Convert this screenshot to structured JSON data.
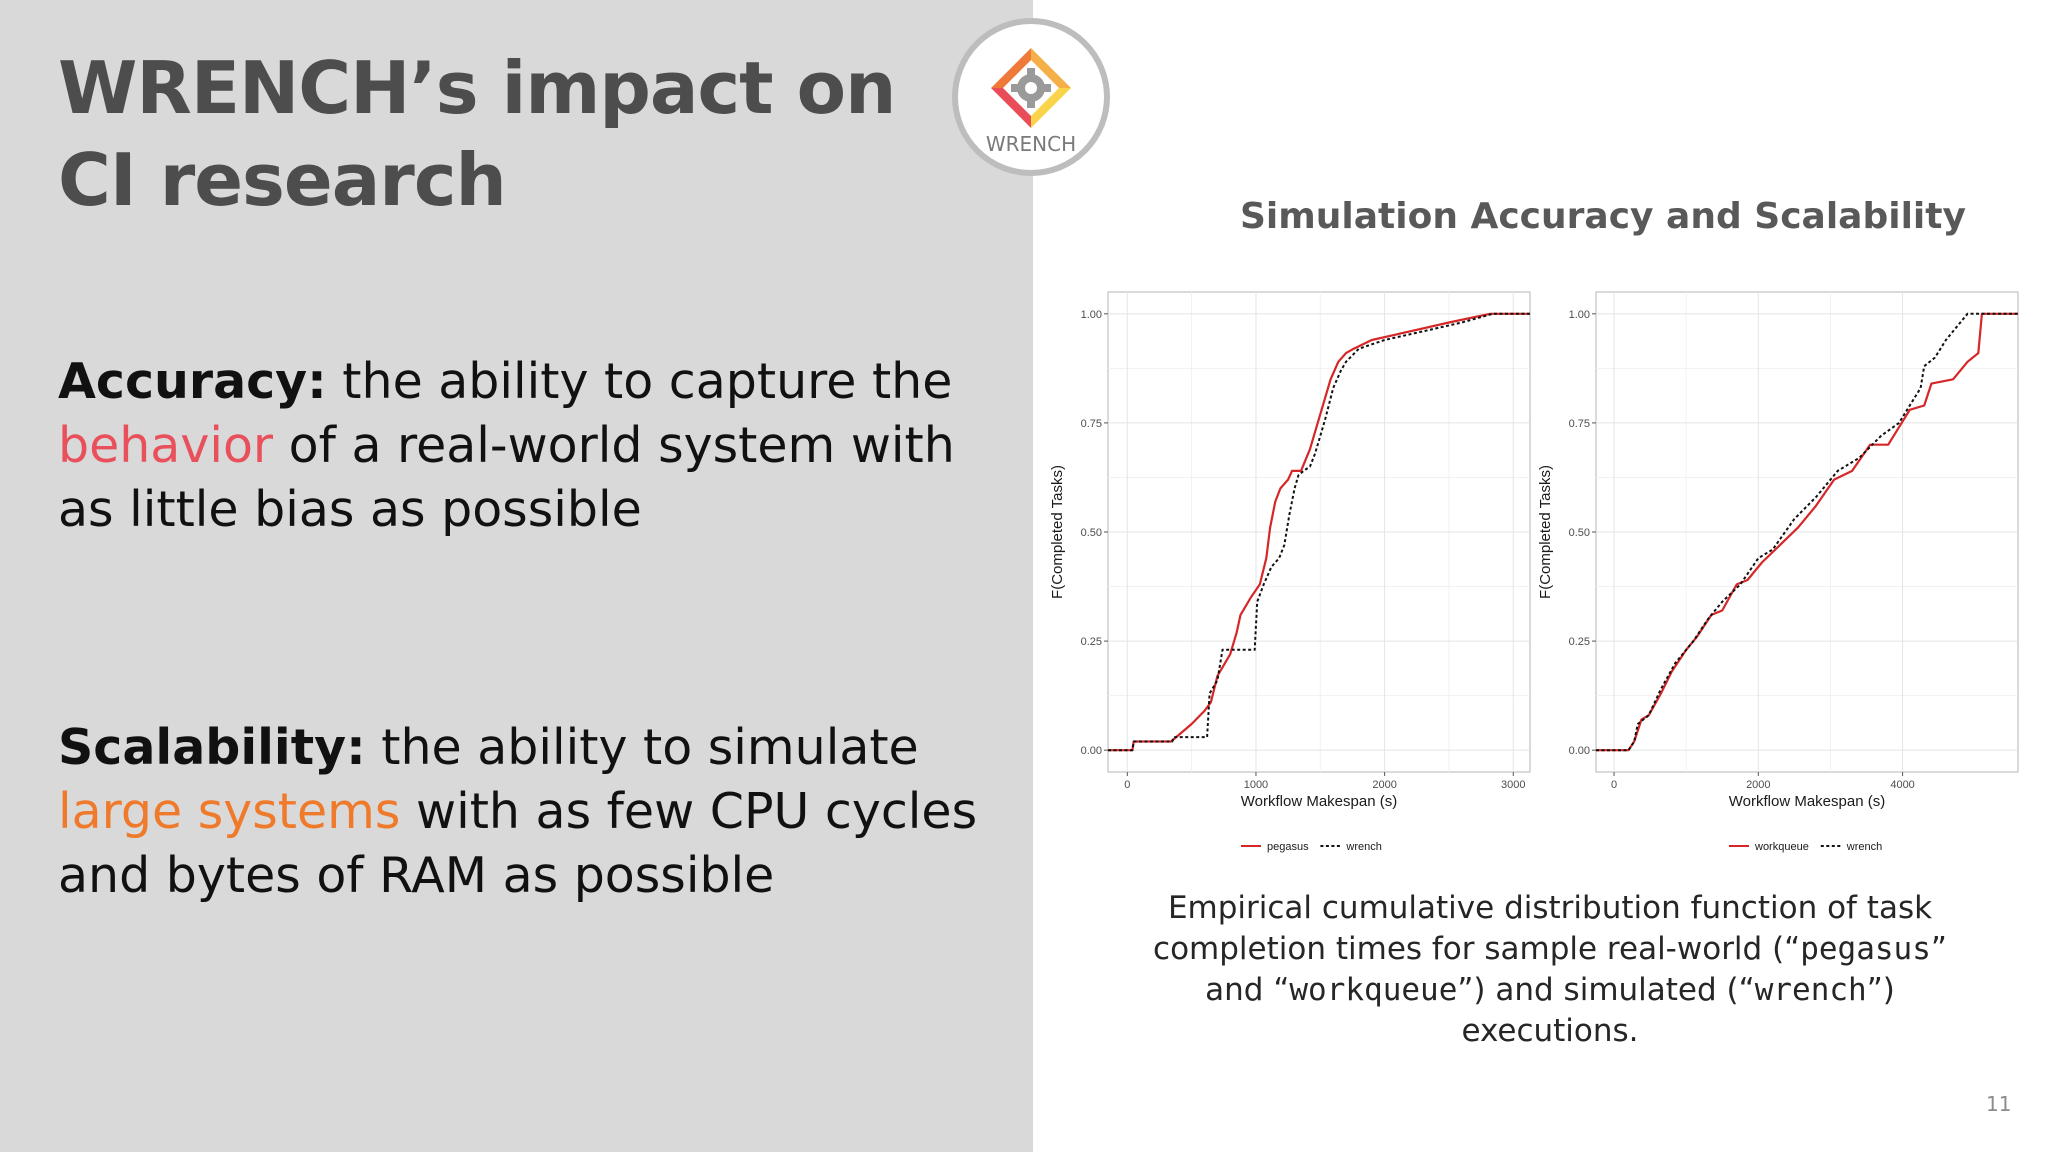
{
  "slide": {
    "title_line1": "WRENCH’s impact on",
    "title_line2": "CI research",
    "page_number": "11"
  },
  "logo": {
    "text": "WRENCH",
    "icon": "gear-icon"
  },
  "accuracy": {
    "term": "Accuracy:",
    "text_a": " the ability to capture the ",
    "highlight": "behavior",
    "text_b": " of a real-world system with as little bias as possible",
    "highlight_color": "#e8505b"
  },
  "scalability": {
    "term": "Scalability:",
    "text_a": " the ability to simulate ",
    "highlight": "large systems",
    "text_b": " with as few CPU cycles and bytes of RAM as possible",
    "highlight_color": "#ef7a2b"
  },
  "chart_section_title": "Simulation Accuracy and Scalability",
  "caption": {
    "part1": "Empirical cumulative distribution function of task completion times for sample real-world (“",
    "code1": "pegasus",
    "part2": "” and “",
    "code2": "workqueue",
    "part3": "”) and simulated (“",
    "code3": "wrench",
    "part4": "”) executions."
  },
  "chart_data": [
    {
      "type": "line",
      "xlabel": "Workflow Makespan (s)",
      "ylabel": "F(Completed Tasks)",
      "xlim": [
        -150,
        3130
      ],
      "ylim": [
        -0.05,
        1.05
      ],
      "xticks": [
        0,
        1000,
        2000,
        3000
      ],
      "xtick_labels": [
        "0",
        "1000",
        "2000",
        "3000"
      ],
      "yticks": [
        0,
        0.25,
        0.5,
        0.75,
        1.0
      ],
      "ytick_labels": [
        "0.00",
        "0.25",
        "0.50",
        "0.75",
        "1.00"
      ],
      "grid": true,
      "legend_position": "bottom",
      "series": [
        {
          "name": "pegasus",
          "color": "#d62728",
          "dash": "solid",
          "points": [
            [
              -150,
              0
            ],
            [
              40,
              0
            ],
            [
              50,
              0.02
            ],
            [
              340,
              0.02
            ],
            [
              380,
              0.03
            ],
            [
              500,
              0.06
            ],
            [
              600,
              0.09
            ],
            [
              650,
              0.11
            ],
            [
              700,
              0.17
            ],
            [
              760,
              0.2
            ],
            [
              800,
              0.22
            ],
            [
              850,
              0.27
            ],
            [
              880,
              0.31
            ],
            [
              920,
              0.33
            ],
            [
              960,
              0.35
            ],
            [
              1030,
              0.38
            ],
            [
              1080,
              0.44
            ],
            [
              1110,
              0.51
            ],
            [
              1150,
              0.57
            ],
            [
              1190,
              0.6
            ],
            [
              1250,
              0.62
            ],
            [
              1280,
              0.64
            ],
            [
              1350,
              0.64
            ],
            [
              1420,
              0.69
            ],
            [
              1500,
              0.77
            ],
            [
              1580,
              0.85
            ],
            [
              1640,
              0.89
            ],
            [
              1700,
              0.91
            ],
            [
              1760,
              0.92
            ],
            [
              1900,
              0.94
            ],
            [
              2200,
              0.96
            ],
            [
              2500,
              0.98
            ],
            [
              2820,
              1.0
            ],
            [
              3130,
              1.0
            ]
          ]
        },
        {
          "name": "wrench",
          "color": "#111111",
          "dash": "dotted",
          "points": [
            [
              -150,
              0
            ],
            [
              40,
              0
            ],
            [
              50,
              0.02
            ],
            [
              350,
              0.02
            ],
            [
              360,
              0.03
            ],
            [
              620,
              0.03
            ],
            [
              640,
              0.13
            ],
            [
              700,
              0.16
            ],
            [
              740,
              0.23
            ],
            [
              990,
              0.23
            ],
            [
              1010,
              0.34
            ],
            [
              1060,
              0.38
            ],
            [
              1120,
              0.42
            ],
            [
              1180,
              0.44
            ],
            [
              1220,
              0.47
            ],
            [
              1260,
              0.54
            ],
            [
              1300,
              0.6
            ],
            [
              1330,
              0.63
            ],
            [
              1370,
              0.64
            ],
            [
              1420,
              0.65
            ],
            [
              1460,
              0.68
            ],
            [
              1540,
              0.76
            ],
            [
              1600,
              0.83
            ],
            [
              1660,
              0.87
            ],
            [
              1700,
              0.89
            ],
            [
              1800,
              0.92
            ],
            [
              2000,
              0.94
            ],
            [
              2300,
              0.96
            ],
            [
              2600,
              0.98
            ],
            [
              2840,
              1.0
            ],
            [
              3130,
              1.0
            ]
          ]
        }
      ]
    },
    {
      "type": "line",
      "xlabel": "Workflow Makespan (s)",
      "ylabel": "F(Completed Tasks)",
      "xlim": [
        -250,
        5600
      ],
      "ylim": [
        -0.05,
        1.05
      ],
      "xticks": [
        0,
        2000,
        4000
      ],
      "xtick_labels": [
        "0",
        "2000",
        "4000"
      ],
      "yticks": [
        0,
        0.25,
        0.5,
        0.75,
        1.0
      ],
      "ytick_labels": [
        "0.00",
        "0.25",
        "0.50",
        "0.75",
        "1.00"
      ],
      "grid": true,
      "legend_position": "bottom",
      "series": [
        {
          "name": "workqueue",
          "color": "#d62728",
          "dash": "solid",
          "points": [
            [
              -250,
              0
            ],
            [
              200,
              0
            ],
            [
              280,
              0.02
            ],
            [
              380,
              0.07
            ],
            [
              480,
              0.08
            ],
            [
              650,
              0.13
            ],
            [
              800,
              0.18
            ],
            [
              1000,
              0.23
            ],
            [
              1150,
              0.26
            ],
            [
              1350,
              0.31
            ],
            [
              1500,
              0.32
            ],
            [
              1700,
              0.38
            ],
            [
              1850,
              0.39
            ],
            [
              2050,
              0.43
            ],
            [
              2300,
              0.47
            ],
            [
              2550,
              0.51
            ],
            [
              2800,
              0.56
            ],
            [
              3050,
              0.62
            ],
            [
              3300,
              0.64
            ],
            [
              3550,
              0.7
            ],
            [
              3800,
              0.7
            ],
            [
              4100,
              0.78
            ],
            [
              4300,
              0.79
            ],
            [
              4400,
              0.84
            ],
            [
              4700,
              0.85
            ],
            [
              4900,
              0.89
            ],
            [
              5050,
              0.91
            ],
            [
              5100,
              1.0
            ],
            [
              5600,
              1.0
            ]
          ]
        },
        {
          "name": "wrench",
          "color": "#111111",
          "dash": "dotted",
          "points": [
            [
              -250,
              0
            ],
            [
              200,
              0
            ],
            [
              280,
              0.02
            ],
            [
              330,
              0.06
            ],
            [
              480,
              0.08
            ],
            [
              650,
              0.14
            ],
            [
              850,
              0.2
            ],
            [
              1100,
              0.25
            ],
            [
              1300,
              0.3
            ],
            [
              1500,
              0.34
            ],
            [
              1750,
              0.38
            ],
            [
              2000,
              0.44
            ],
            [
              2200,
              0.46
            ],
            [
              2500,
              0.53
            ],
            [
              2800,
              0.58
            ],
            [
              3100,
              0.64
            ],
            [
              3400,
              0.67
            ],
            [
              3700,
              0.72
            ],
            [
              3950,
              0.75
            ],
            [
              4250,
              0.83
            ],
            [
              4300,
              0.88
            ],
            [
              4450,
              0.9
            ],
            [
              4600,
              0.94
            ],
            [
              4800,
              0.98
            ],
            [
              4900,
              1.0
            ],
            [
              5600,
              1.0
            ]
          ]
        }
      ]
    }
  ]
}
